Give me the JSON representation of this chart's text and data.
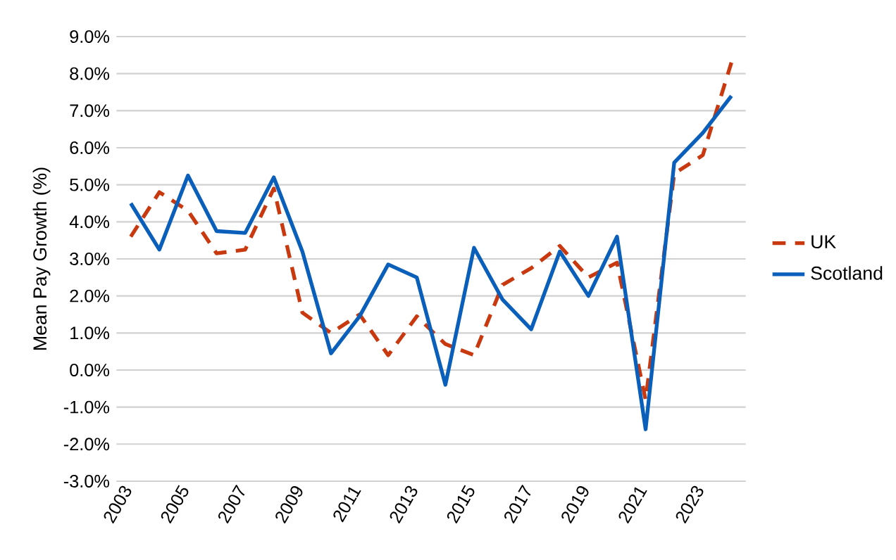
{
  "chart_data": {
    "type": "line",
    "ylabel": "Mean Pay Growth (%)",
    "categories": [
      "2003",
      null,
      "2005",
      null,
      "2007",
      null,
      "2009",
      null,
      "2011",
      null,
      "2013",
      null,
      "2015",
      null,
      "2017",
      null,
      "2019",
      null,
      "2021",
      null,
      "2023",
      null
    ],
    "series": [
      {
        "name": "UK",
        "color": "#c8390f",
        "line_style": "dashed",
        "values": [
          3.6,
          4.8,
          4.3,
          3.15,
          3.25,
          4.9,
          1.55,
          1.0,
          1.5,
          0.4,
          1.45,
          0.7,
          0.4,
          2.3,
          2.75,
          3.35,
          2.5,
          2.9,
          -0.8,
          5.3,
          5.8,
          8.3
        ]
      },
      {
        "name": "Scotland",
        "color": "#0a5fba",
        "line_style": "solid",
        "values": [
          4.5,
          3.25,
          5.25,
          3.75,
          3.7,
          5.2,
          3.2,
          0.45,
          1.45,
          2.85,
          2.5,
          -0.4,
          3.3,
          1.9,
          1.1,
          3.2,
          2.0,
          3.6,
          -1.6,
          5.6,
          6.4,
          7.4
        ]
      }
    ],
    "ylim": [
      -3,
      9
    ],
    "yticks": [
      {
        "value": -3,
        "label": "-3.0%"
      },
      {
        "value": -2,
        "label": "-2.0%"
      },
      {
        "value": -1,
        "label": "-1.0%"
      },
      {
        "value": 0,
        "label": "0.0%"
      },
      {
        "value": 1,
        "label": "1.0%"
      },
      {
        "value": 2,
        "label": "2.0%"
      },
      {
        "value": 3,
        "label": "3.0%"
      },
      {
        "value": 4,
        "label": "4.0%"
      },
      {
        "value": 5,
        "label": "5.0%"
      },
      {
        "value": 6,
        "label": "6.0%"
      },
      {
        "value": 7,
        "label": "7.0%"
      },
      {
        "value": 8,
        "label": "8.0%"
      },
      {
        "value": 9,
        "label": "9.0%"
      }
    ],
    "grid": "y",
    "legend": "right",
    "marker": "none"
  }
}
